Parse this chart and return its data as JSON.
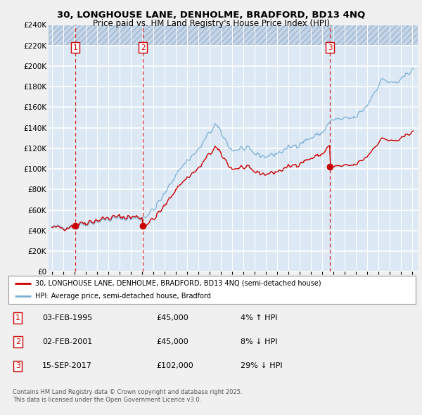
{
  "title1": "30, LONGHOUSE LANE, DENHOLME, BRADFORD, BD13 4NQ",
  "title2": "Price paid vs. HM Land Registry's House Price Index (HPI)",
  "fig_bg": "#f0f0f0",
  "plot_bg": "#dce9f5",
  "ylim": [
    0,
    240000
  ],
  "yticks": [
    0,
    20000,
    40000,
    60000,
    80000,
    100000,
    120000,
    140000,
    160000,
    180000,
    200000,
    220000,
    240000
  ],
  "ytick_labels": [
    "£0",
    "£20K",
    "£40K",
    "£60K",
    "£80K",
    "£100K",
    "£120K",
    "£140K",
    "£160K",
    "£180K",
    "£200K",
    "£220K",
    "£240K"
  ],
  "xlim_start": 1992.7,
  "xlim_end": 2025.5,
  "red_line_color": "#cc0000",
  "blue_line_color": "#7bafd4",
  "sales": [
    {
      "year": 1995.08,
      "price": 45000,
      "label": "1"
    },
    {
      "year": 2001.08,
      "price": 45000,
      "label": "2"
    },
    {
      "year": 2017.71,
      "price": 102000,
      "label": "3"
    }
  ],
  "legend_red_label": "30, LONGHOUSE LANE, DENHOLME, BRADFORD, BD13 4NQ (semi-detached house)",
  "legend_blue_label": "HPI: Average price, semi-detached house, Bradford",
  "table_rows": [
    {
      "num": "1",
      "date": "03-FEB-1995",
      "price": "£45,000",
      "hpi": "4% ↑ HPI"
    },
    {
      "num": "2",
      "date": "02-FEB-2001",
      "price": "£45,000",
      "hpi": "8% ↓ HPI"
    },
    {
      "num": "3",
      "date": "15-SEP-2017",
      "price": "£102,000",
      "hpi": "29% ↓ HPI"
    }
  ],
  "footnote": "Contains HM Land Registry data © Crown copyright and database right 2025.\nThis data is licensed under the Open Government Licence v3.0."
}
